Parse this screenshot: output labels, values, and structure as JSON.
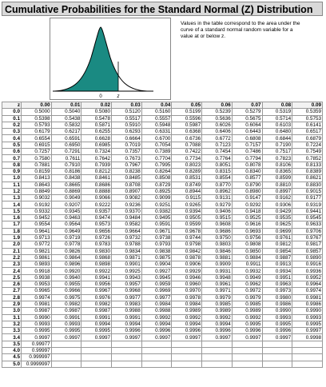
{
  "header": {
    "title": "Cumulative Probabilities for the Standard Normal (Z) Distribution"
  },
  "figure": {
    "mean_label": "0",
    "z_label": "z"
  },
  "note": "Values in the table correspond to the area under the curve of a standard normal random variable for a value at or below z.",
  "table": {
    "columns": [
      "z",
      "0.00",
      "0.01",
      "0.02",
      "0.03",
      "0.04",
      "0.05",
      "0.06",
      "0.07",
      "0.08",
      "0.09"
    ],
    "rows": [
      [
        "0.0",
        "0.5000",
        "0.5040",
        "0.5080",
        "0.5120",
        "0.5160",
        "0.5199",
        "0.5239",
        "0.5279",
        "0.5319",
        "0.5359"
      ],
      [
        "0.1",
        "0.5398",
        "0.5438",
        "0.5478",
        "0.5517",
        "0.5557",
        "0.5596",
        "0.5636",
        "0.5675",
        "0.5714",
        "0.5753"
      ],
      [
        "0.2",
        "0.5793",
        "0.5832",
        "0.5871",
        "0.5910",
        "0.5948",
        "0.5987",
        "0.6026",
        "0.6064",
        "0.6103",
        "0.6141"
      ],
      [
        "0.3",
        "0.6179",
        "0.6217",
        "0.6255",
        "0.6293",
        "0.6331",
        "0.6368",
        "0.6406",
        "0.6443",
        "0.6480",
        "0.6517"
      ],
      [
        "0.4",
        "0.6554",
        "0.6591",
        "0.6628",
        "0.6664",
        "0.6700",
        "0.6736",
        "0.6772",
        "0.6808",
        "0.6844",
        "0.6879"
      ],
      [
        "0.5",
        "0.6915",
        "0.6950",
        "0.6985",
        "0.7019",
        "0.7054",
        "0.7088",
        "0.7123",
        "0.7157",
        "0.7190",
        "0.7224"
      ],
      [
        "0.6",
        "0.7257",
        "0.7291",
        "0.7324",
        "0.7357",
        "0.7389",
        "0.7422",
        "0.7454",
        "0.7486",
        "0.7517",
        "0.7549"
      ],
      [
        "0.7",
        "0.7580",
        "0.7611",
        "0.7642",
        "0.7673",
        "0.7704",
        "0.7734",
        "0.7764",
        "0.7794",
        "0.7823",
        "0.7852"
      ],
      [
        "0.8",
        "0.7881",
        "0.7910",
        "0.7939",
        "0.7967",
        "0.7995",
        "0.8023",
        "0.8051",
        "0.8078",
        "0.8106",
        "0.8133"
      ],
      [
        "0.9",
        "0.8159",
        "0.8186",
        "0.8212",
        "0.8238",
        "0.8264",
        "0.8289",
        "0.8315",
        "0.8340",
        "0.8365",
        "0.8389"
      ],
      [
        "1.0",
        "0.8413",
        "0.8438",
        "0.8461",
        "0.8485",
        "0.8508",
        "0.8531",
        "0.8554",
        "0.8577",
        "0.8599",
        "0.8621"
      ],
      [
        "1.1",
        "0.8643",
        "0.8665",
        "0.8686",
        "0.8708",
        "0.8729",
        "0.8749",
        "0.8770",
        "0.8790",
        "0.8810",
        "0.8830"
      ],
      [
        "1.2",
        "0.8849",
        "0.8869",
        "0.8888",
        "0.8907",
        "0.8925",
        "0.8944",
        "0.8962",
        "0.8980",
        "0.8997",
        "0.9015"
      ],
      [
        "1.3",
        "0.9032",
        "0.9049",
        "0.9066",
        "0.9082",
        "0.9099",
        "0.9115",
        "0.9131",
        "0.9147",
        "0.9162",
        "0.9177"
      ],
      [
        "1.4",
        "0.9192",
        "0.9207",
        "0.9222",
        "0.9236",
        "0.9251",
        "0.9265",
        "0.9279",
        "0.9292",
        "0.9306",
        "0.9319"
      ],
      [
        "1.5",
        "0.9332",
        "0.9345",
        "0.9357",
        "0.9370",
        "0.9382",
        "0.9394",
        "0.9406",
        "0.9418",
        "0.9429",
        "0.9441"
      ],
      [
        "1.6",
        "0.9452",
        "0.9463",
        "0.9474",
        "0.9484",
        "0.9495",
        "0.9505",
        "0.9515",
        "0.9525",
        "0.9535",
        "0.9545"
      ],
      [
        "1.7",
        "0.9554",
        "0.9564",
        "0.9573",
        "0.9582",
        "0.9591",
        "0.9599",
        "0.9608",
        "0.9616",
        "0.9625",
        "0.9633"
      ],
      [
        "1.8",
        "0.9641",
        "0.9649",
        "0.9656",
        "0.9664",
        "0.9671",
        "0.9678",
        "0.9686",
        "0.9693",
        "0.9699",
        "0.9706"
      ],
      [
        "1.9",
        "0.9713",
        "0.9719",
        "0.9726",
        "0.9732",
        "0.9738",
        "0.9744",
        "0.9750",
        "0.9756",
        "0.9761",
        "0.9767"
      ],
      [
        "2.0",
        "0.9772",
        "0.9778",
        "0.9783",
        "0.9788",
        "0.9793",
        "0.9798",
        "0.9803",
        "0.9808",
        "0.9812",
        "0.9817"
      ],
      [
        "2.1",
        "0.9821",
        "0.9826",
        "0.9830",
        "0.9834",
        "0.9838",
        "0.9842",
        "0.9846",
        "0.9850",
        "0.9854",
        "0.9857"
      ],
      [
        "2.2",
        "0.9861",
        "0.9864",
        "0.9868",
        "0.9871",
        "0.9875",
        "0.9878",
        "0.9881",
        "0.9884",
        "0.9887",
        "0.9890"
      ],
      [
        "2.3",
        "0.9893",
        "0.9896",
        "0.9898",
        "0.9901",
        "0.9904",
        "0.9906",
        "0.9909",
        "0.9911",
        "0.9913",
        "0.9916"
      ],
      [
        "2.4",
        "0.9918",
        "0.9920",
        "0.9922",
        "0.9925",
        "0.9927",
        "0.9929",
        "0.9931",
        "0.9932",
        "0.9934",
        "0.9936"
      ],
      [
        "2.5",
        "0.9938",
        "0.9940",
        "0.9941",
        "0.9943",
        "0.9945",
        "0.9946",
        "0.9948",
        "0.9949",
        "0.9951",
        "0.9952"
      ],
      [
        "2.6",
        "0.9953",
        "0.9955",
        "0.9956",
        "0.9957",
        "0.9959",
        "0.9960",
        "0.9961",
        "0.9962",
        "0.9963",
        "0.9964"
      ],
      [
        "2.7",
        "0.9965",
        "0.9966",
        "0.9967",
        "0.9968",
        "0.9969",
        "0.9970",
        "0.9971",
        "0.9972",
        "0.9973",
        "0.9974"
      ],
      [
        "2.8",
        "0.9974",
        "0.9975",
        "0.9976",
        "0.9977",
        "0.9977",
        "0.9978",
        "0.9979",
        "0.9979",
        "0.9980",
        "0.9981"
      ],
      [
        "2.9",
        "0.9981",
        "0.9982",
        "0.9982",
        "0.9983",
        "0.9984",
        "0.9984",
        "0.9985",
        "0.9985",
        "0.9986",
        "0.9986"
      ],
      [
        "3.0",
        "0.9987",
        "0.9987",
        "0.9987",
        "0.9988",
        "0.9988",
        "0.9989",
        "0.9989",
        "0.9989",
        "0.9990",
        "0.9990"
      ],
      [
        "3.1",
        "0.9990",
        "0.9991",
        "0.9991",
        "0.9991",
        "0.9992",
        "0.9992",
        "0.9992",
        "0.9992",
        "0.9993",
        "0.9993"
      ],
      [
        "3.2",
        "0.9993",
        "0.9993",
        "0.9994",
        "0.9994",
        "0.9994",
        "0.9994",
        "0.9994",
        "0.9995",
        "0.9995",
        "0.9995"
      ],
      [
        "3.3",
        "0.9995",
        "0.9995",
        "0.9995",
        "0.9996",
        "0.9996",
        "0.9996",
        "0.9996",
        "0.9996",
        "0.9996",
        "0.9997"
      ],
      [
        "3.4",
        "0.9997",
        "0.9997",
        "0.9997",
        "0.9997",
        "0.9997",
        "0.9997",
        "0.9997",
        "0.9997",
        "0.9997",
        "0.9998"
      ],
      [
        "3.5",
        "0.99977"
      ],
      [
        "4.0",
        "0.99997"
      ],
      [
        "4.5",
        "0.999997"
      ],
      [
        "5.0",
        "0.9999997"
      ]
    ]
  }
}
